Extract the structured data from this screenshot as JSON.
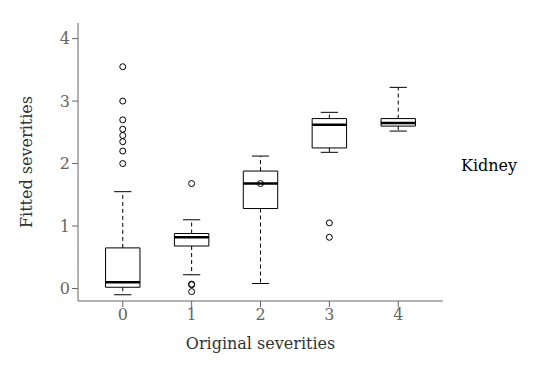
{
  "chart_data": {
    "type": "box",
    "title": "Kidney",
    "xlabel": "Original severities",
    "ylabel": "Fitted severities",
    "x": [
      0,
      1,
      2,
      3,
      4
    ],
    "boxes": [
      {
        "whislo": -0.1,
        "q1": 0.02,
        "med": 0.1,
        "q3": 0.65,
        "whishi": 1.55,
        "fliers": [
          3.55,
          3.0,
          2.7,
          2.55,
          2.45,
          2.35,
          2.2,
          2.0
        ]
      },
      {
        "whislo": 0.22,
        "q1": 0.68,
        "med": 0.82,
        "q3": 0.88,
        "whishi": 1.1,
        "fliers": [
          0.06,
          0.07,
          -0.05,
          1.68
        ]
      },
      {
        "whislo": 0.08,
        "q1": 1.28,
        "med": 1.68,
        "q3": 1.88,
        "whishi": 2.12,
        "fliers": [
          1.68
        ]
      },
      {
        "whislo": 2.18,
        "q1": 2.25,
        "med": 2.62,
        "q3": 2.72,
        "whishi": 2.82,
        "fliers": [
          1.05,
          0.82
        ]
      },
      {
        "whislo": 2.52,
        "q1": 2.6,
        "med": 2.65,
        "q3": 2.72,
        "whishi": 3.22,
        "fliers": []
      }
    ],
    "xlim": [
      -0.65,
      4.65
    ],
    "xticks": [
      0,
      1,
      2,
      3,
      4
    ],
    "ylim": [
      -0.2,
      4.25
    ],
    "yticks": [
      0,
      1,
      2,
      3,
      4
    ],
    "color": "#000000",
    "marker": "circle",
    "line_style": "dashed"
  }
}
